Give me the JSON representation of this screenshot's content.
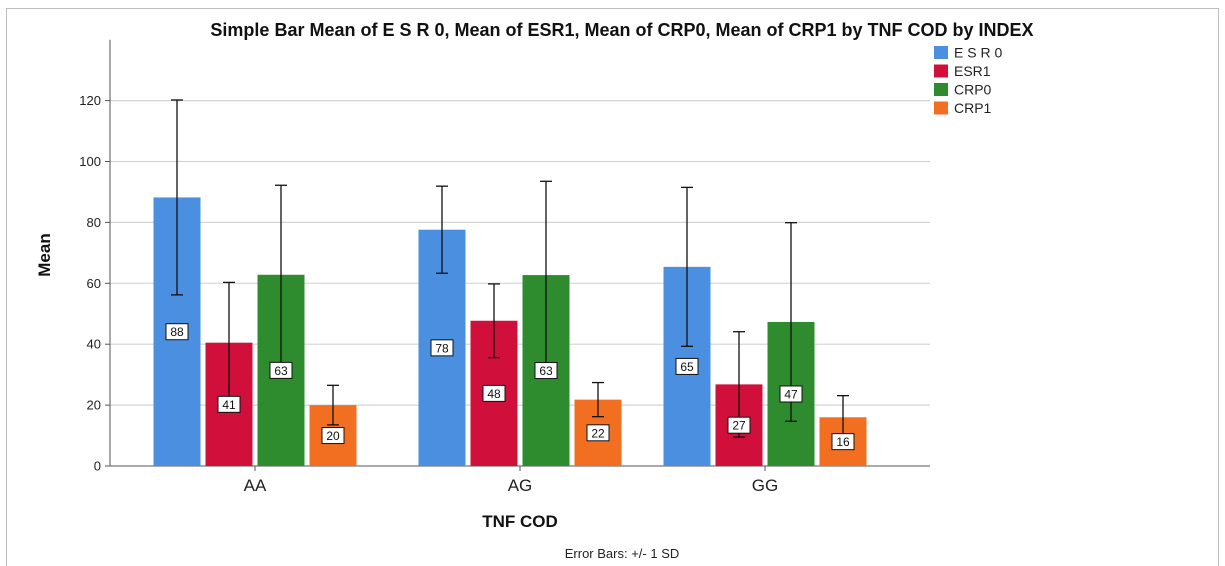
{
  "chart_data": {
    "type": "bar",
    "title": "Simple Bar Mean of E S R 0, Mean of ESR1, Mean of CRP0, Mean of CRP1 by TNF COD by INDEX",
    "xlabel": "TNF COD",
    "ylabel": "Mean",
    "categories": [
      "AA",
      "AG",
      "GG"
    ],
    "ylim": [
      0,
      140
    ],
    "yticks": [
      0,
      20,
      40,
      60,
      80,
      100,
      120
    ],
    "grid": true,
    "legend_position": "top-right",
    "series": [
      {
        "name": "E S R 0",
        "color": "#4a8fe0",
        "values": [
          88.2,
          77.6,
          65.4
        ],
        "labels": [
          "88",
          "78",
          "65"
        ],
        "sd": [
          32,
          14.3,
          26.1
        ]
      },
      {
        "name": "ESR1",
        "color": "#d0103a",
        "values": [
          40.5,
          47.7,
          26.8
        ],
        "labels": [
          "41",
          "48",
          "27"
        ],
        "sd": [
          19.8,
          12.1,
          17.3
        ]
      },
      {
        "name": "CRP0",
        "color": "#2e8b2e",
        "values": [
          62.8,
          62.7,
          47.3
        ],
        "labels": [
          "63",
          "63",
          "47"
        ],
        "sd": [
          29.4,
          30.8,
          32.6
        ]
      },
      {
        "name": "CRP1",
        "color": "#f26f22",
        "values": [
          20,
          21.8,
          16
        ],
        "labels": [
          "20",
          "22",
          "16"
        ],
        "sd": [
          6.5,
          5.6,
          7.1
        ]
      }
    ],
    "error_bar_note": "Error Bars: +/- 1 SD"
  }
}
